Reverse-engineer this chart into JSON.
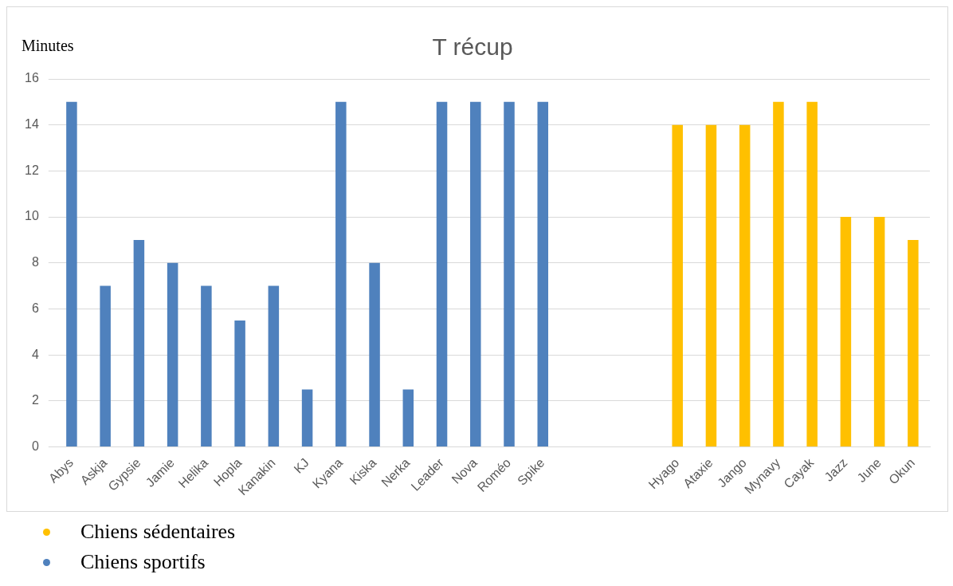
{
  "chart_data": {
    "type": "bar",
    "title": "T récup",
    "ylabel": "Minutes",
    "categories": [
      "Abys",
      "Askja",
      "Gypsie",
      "Jamie",
      "Helika",
      "Hopla",
      "Kanakin",
      "KJ",
      "Kyana",
      "Kiska",
      "Nerka",
      "Leader",
      "Nova",
      "Roméo",
      "Spike",
      null,
      null,
      null,
      "Hyago",
      "Ataxie",
      "Jango",
      "Mynavy",
      "Cayak",
      "Jazz",
      "June",
      "Okun"
    ],
    "series": [
      {
        "name": "Chiens sédentaires",
        "color": "#ffc000",
        "values": [
          null,
          null,
          null,
          null,
          null,
          null,
          null,
          null,
          null,
          null,
          null,
          null,
          null,
          null,
          null,
          null,
          null,
          null,
          14,
          14,
          14,
          15,
          15,
          10,
          10,
          9
        ]
      },
      {
        "name": "Chiens sportifs",
        "color": "#4f81bd",
        "values": [
          15,
          7,
          9,
          8,
          7,
          5.5,
          7,
          2.5,
          15,
          8,
          2.5,
          15,
          15,
          15,
          15,
          null,
          null,
          null,
          null,
          null,
          null,
          null,
          null,
          null,
          null,
          null
        ]
      }
    ],
    "ylim": [
      0,
      16
    ],
    "yticks": [
      0,
      2,
      4,
      6,
      8,
      10,
      12,
      14,
      16
    ],
    "grid": "y",
    "legend": "bottom left"
  }
}
